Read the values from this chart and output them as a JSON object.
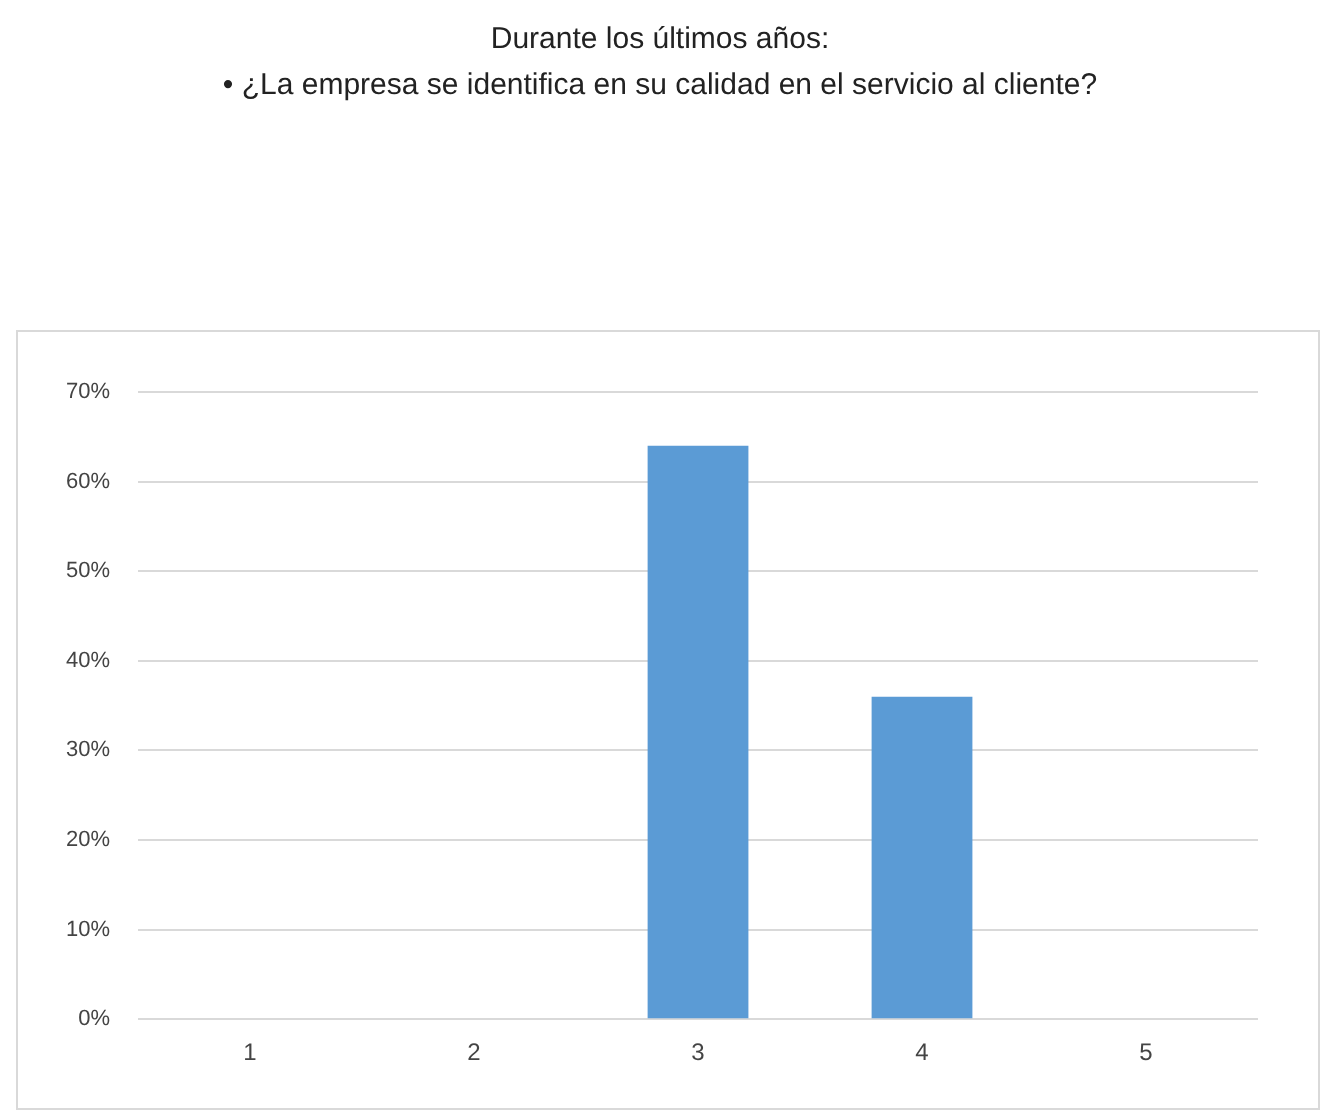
{
  "chart_data": {
    "type": "bar",
    "title": "Durante los últimos años:\n• ¿La empresa se identifica en su calidad en el servicio al cliente?",
    "categories": [
      "1",
      "2",
      "3",
      "4",
      "5"
    ],
    "values": [
      0,
      0,
      64,
      36,
      0
    ],
    "color": "#5b9bd5",
    "ylim": [
      0,
      70
    ],
    "yticks": [
      {
        "value": 0,
        "label": "0%"
      },
      {
        "value": 10,
        "label": "10%"
      },
      {
        "value": 20,
        "label": "20%"
      },
      {
        "value": 30,
        "label": "30%"
      },
      {
        "value": 40,
        "label": "40%"
      },
      {
        "value": 50,
        "label": "50%"
      },
      {
        "value": 60,
        "label": "60%"
      },
      {
        "value": 70,
        "label": "70%"
      }
    ],
    "grid": "y",
    "legend": false
  }
}
